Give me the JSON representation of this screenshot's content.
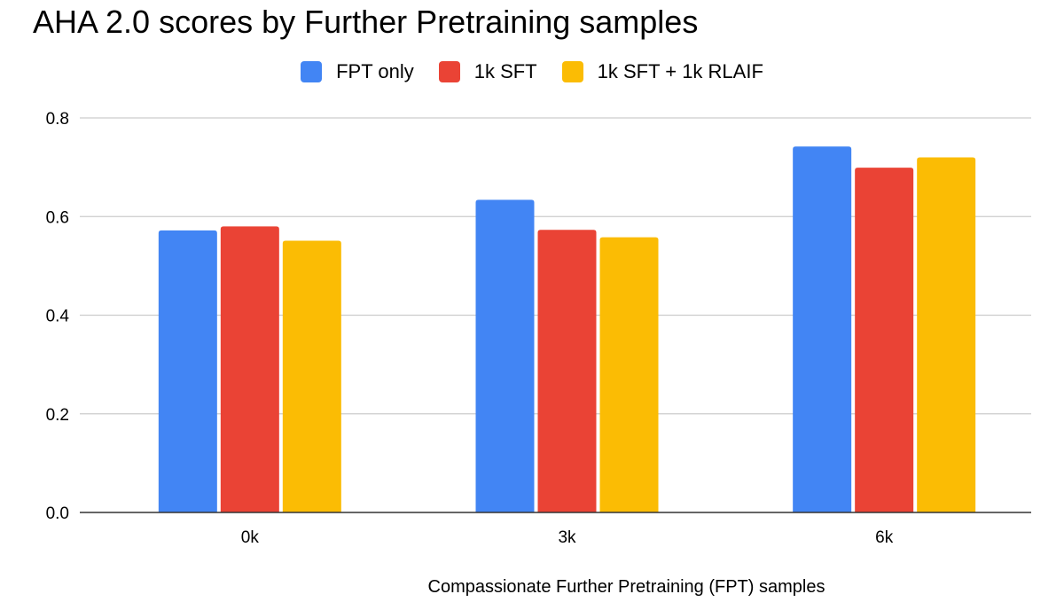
{
  "chart_data": {
    "type": "bar",
    "title": "AHA 2.0 scores by Further Pretraining samples",
    "xlabel": "Compassionate Further Pretraining (FPT) samples",
    "ylabel": "",
    "categories": [
      "0k",
      "3k",
      "6k"
    ],
    "series": [
      {
        "name": "FPT only",
        "color": "#4285F4",
        "values": [
          0.572,
          0.634,
          0.742
        ]
      },
      {
        "name": "1k SFT",
        "color": "#EA4335",
        "values": [
          0.58,
          0.573,
          0.699
        ]
      },
      {
        "name": "1k SFT + 1k RLAIF",
        "color": "#FBBC04",
        "values": [
          0.551,
          0.558,
          0.72
        ]
      }
    ],
    "ylim": [
      0,
      0.8
    ],
    "yticks": [
      "0.0",
      "0.2",
      "0.4",
      "0.6",
      "0.8"
    ],
    "grid": true,
    "legend_position": "top-center"
  }
}
